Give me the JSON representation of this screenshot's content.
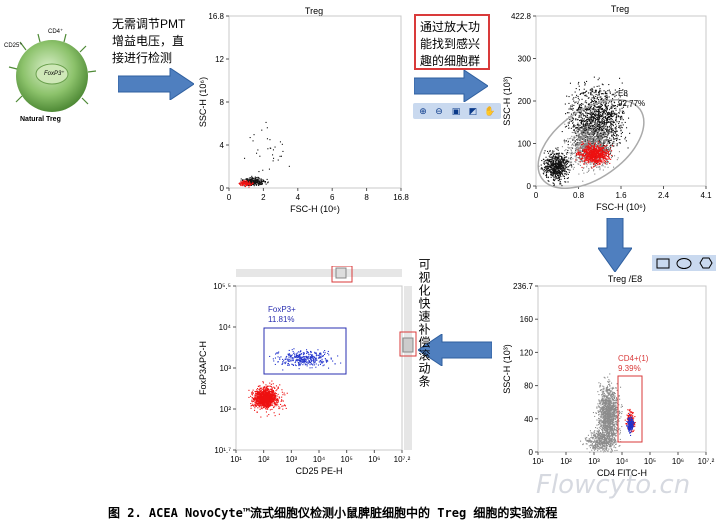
{
  "cell_labels": {
    "cd25": "CD25⁺",
    "cd4": "CD4⁺",
    "foxp3": "FoxP3⁺",
    "name": "Natural Treg"
  },
  "annotations": {
    "step1": [
      "无需调节PMT",
      "增益电压，直",
      "接进行检测"
    ],
    "step2": [
      "通过放大功",
      "能找到感兴",
      "趣的细胞群"
    ],
    "step4": "可视化快速补偿滚动条"
  },
  "plot1": {
    "title": "Treg",
    "xlabel": "FSC-H (10⁶)",
    "ylabel": "SSC-H (10⁶)",
    "xticks": [
      "0",
      "2",
      "4",
      "6",
      "8",
      "16.8"
    ],
    "yticks": [
      "0",
      "4",
      "8",
      "12",
      "16.8"
    ]
  },
  "plot2": {
    "title": "Treg",
    "xlabel": "FSC-H (10⁶)",
    "ylabel": "SSC-H (10³)",
    "xticks": [
      "0",
      "0.8",
      "1.6",
      "2.4",
      "4.1"
    ],
    "yticks": [
      "0",
      "100",
      "200",
      "300",
      "422.8"
    ],
    "gate_name": "E8",
    "gate_pct": "92.77%"
  },
  "plot3": {
    "title": "Treg /E8",
    "xlabel": "CD4 FITC-H",
    "ylabel": "SSC-H (10³)",
    "xticks": [
      "10¹",
      "10²",
      "10³",
      "10⁴",
      "10⁵",
      "10⁶",
      "10⁷.²"
    ],
    "yticks": [
      "0",
      "40",
      "80",
      "120",
      "160",
      "236.7"
    ],
    "gate_name": "CD4+(1)",
    "gate_pct": "9.39%"
  },
  "plot4": {
    "xlabel": "CD25 PE-H",
    "ylabel": "FoxP3APC-H",
    "xticks": [
      "10¹",
      "10²",
      "10³",
      "10⁴",
      "10⁵",
      "10⁶",
      "10⁷.²"
    ],
    "yticks": [
      "10¹.⁷",
      "10²",
      "10³",
      "10⁴",
      "10⁵.⁵"
    ],
    "gate_name": "FoxP3+",
    "gate_pct": "11.81%"
  },
  "caption": "图 2. ACEA NovoCyte™流式细胞仪检测小鼠脾脏细胞中的 Treg 细胞的实验流程",
  "watermark": "Flowcyto.cn",
  "colors": {
    "arrow": "#4f7fbf",
    "gate_red": "#d93a3a",
    "gate_blue": "#2a2fb0",
    "dots_red": "#ee1111",
    "dots_blue": "#2233cc",
    "dots_grey": "#8c8c8c",
    "cell_green": "#8cc26b"
  },
  "toolbar_icons": [
    "zoom-in-icon",
    "zoom-out-icon",
    "fit-icon",
    "select-icon",
    "hand-icon"
  ],
  "gate_tools": [
    "rectangle-gate-icon",
    "ellipse-gate-icon",
    "polygon-gate-icon"
  ]
}
